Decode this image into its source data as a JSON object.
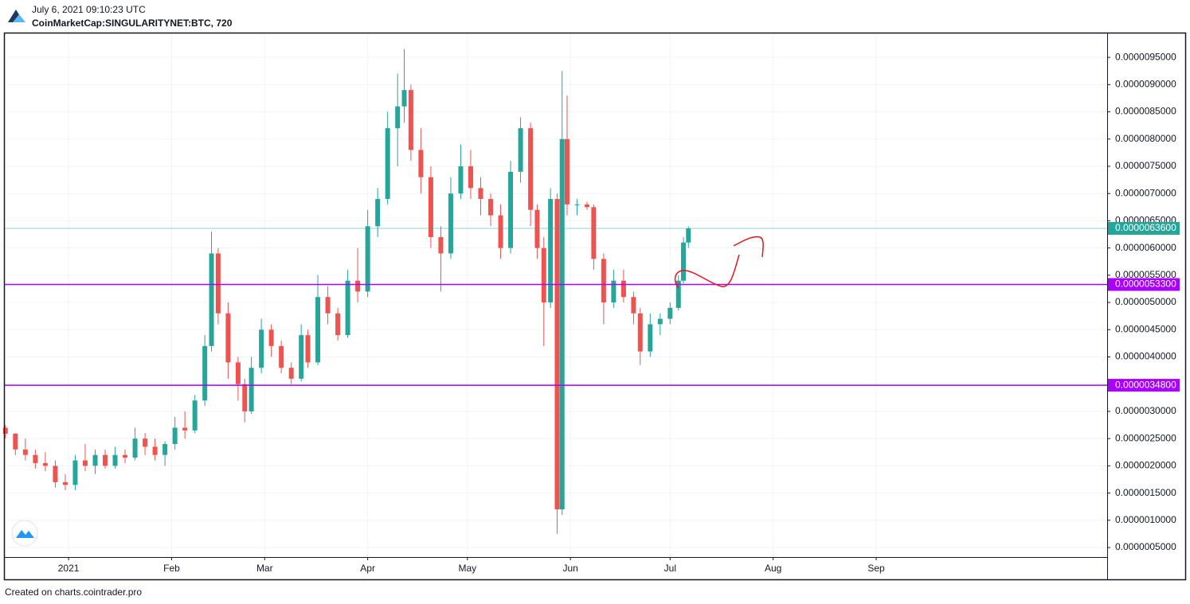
{
  "header": {
    "timestamp": "July 6, 2021 09:10:23 UTC",
    "symbol": "CoinMarketCap:SINGULARITYNET:BTC, 720"
  },
  "chart_data": {
    "type": "candlestick",
    "x": [
      -19,
      -16,
      -13,
      -10,
      -7,
      -4,
      -1,
      2,
      5,
      8,
      11,
      14,
      17,
      20,
      23,
      26,
      29,
      32,
      35,
      38,
      41,
      43,
      45,
      48,
      51,
      53,
      55,
      58,
      61,
      64,
      67,
      70,
      72,
      75,
      78,
      81,
      84,
      87,
      90,
      93,
      96,
      99,
      101,
      103,
      106,
      109,
      112,
      115,
      118,
      121,
      124,
      127,
      130,
      133,
      136,
      139,
      141,
      143,
      145,
      147,
      148.5,
      150,
      153,
      156,
      158,
      161,
      164,
      167,
      170,
      172,
      175,
      178,
      181,
      183.5,
      185,
      186.5
    ],
    "open": [
      2.7e-06,
      2.59e-06,
      2.3e-06,
      2.2e-06,
      2.05e-06,
      2e-06,
      1.7e-06,
      1.65e-06,
      2.1e-06,
      2e-06,
      2.2e-06,
      2e-06,
      2.2e-06,
      2.15e-06,
      2.5e-06,
      2.35e-06,
      2.2e-06,
      2.4e-06,
      2.7e-06,
      2.65e-06,
      3.2e-06,
      4.2e-06,
      5.9e-06,
      4.8e-06,
      3.9e-06,
      3.5e-06,
      3e-06,
      3.8e-06,
      4.5e-06,
      4.2e-06,
      3.8e-06,
      3.6e-06,
      4.4e-06,
      3.9e-06,
      5.1e-06,
      4.8e-06,
      4.4e-06,
      5.4e-06,
      5.2e-06,
      6.4e-06,
      6.9e-06,
      8.2e-06,
      8.6e-06,
      8.9e-06,
      7.8e-06,
      7.3e-06,
      6.2e-06,
      5.9e-06,
      7e-06,
      7.5e-06,
      7.1e-06,
      6.9e-06,
      6.6e-06,
      6e-06,
      7.4e-06,
      8.2e-06,
      6.7e-06,
      6e-06,
      5e-06,
      6.9e-06,
      1.2e-06,
      8e-06,
      6.8e-06,
      6.8e-06,
      6.75e-06,
      5.8e-06,
      5e-06,
      5.4e-06,
      5.1e-06,
      4.8e-06,
      4.1e-06,
      4.6e-06,
      4.7e-06,
      4.9e-06,
      5.4e-06,
      6.1e-06
    ],
    "high": [
      2.75e-06,
      2.6e-06,
      2.5e-06,
      2.3e-06,
      2.25e-06,
      2.1e-06,
      1.85e-06,
      2.2e-06,
      2.4e-06,
      2.3e-06,
      2.3e-06,
      2.35e-06,
      2.3e-06,
      2.7e-06,
      2.6e-06,
      2.5e-06,
      2.45e-06,
      2.9e-06,
      3e-06,
      3.3e-06,
      4.4e-06,
      6.3e-06,
      6e-06,
      5e-06,
      4e-06,
      3.6e-06,
      4e-06,
      4.7e-06,
      4.6e-06,
      4.3e-06,
      3.9e-06,
      4.6e-06,
      4.5e-06,
      5.5e-06,
      5.3e-06,
      4.9e-06,
      5.6e-06,
      6e-06,
      6.7e-06,
      7.1e-06,
      8.5e-06,
      9.2e-06,
      9.65e-06,
      9e-06,
      8.2e-06,
      7.5e-06,
      6.4e-06,
      7.3e-06,
      7.9e-06,
      7.8e-06,
      7.3e-06,
      7e-06,
      6.8e-06,
      7.6e-06,
      8.4e-06,
      8.3e-06,
      6.8e-06,
      6.2e-06,
      7.1e-06,
      7e-06,
      9.25e-06,
      8.8e-06,
      6.9e-06,
      6.85e-06,
      6.8e-06,
      5.9e-06,
      5.6e-06,
      5.6e-06,
      5.2e-06,
      4.9e-06,
      4.8e-06,
      4.8e-06,
      5e-06,
      5.5e-06,
      6.2e-06,
      6.4e-06
    ],
    "low": [
      2.5e-06,
      2.2e-06,
      2.1e-06,
      1.95e-06,
      1.9e-06,
      1.6e-06,
      1.55e-06,
      1.55e-06,
      1.9e-06,
      1.85e-06,
      1.95e-06,
      1.95e-06,
      2.05e-06,
      2.1e-06,
      2.2e-06,
      2.1e-06,
      2e-06,
      2.3e-06,
      2.5e-06,
      2.6e-06,
      3.1e-06,
      4.1e-06,
      4.6e-06,
      3.6e-06,
      3.2e-06,
      2.8e-06,
      2.95e-06,
      3.7e-06,
      4e-06,
      3.7e-06,
      3.5e-06,
      3.55e-06,
      3.8e-06,
      3.85e-06,
      4.6e-06,
      4.3e-06,
      4.35e-06,
      5e-06,
      5.1e-06,
      6.2e-06,
      6.8e-06,
      7.5e-06,
      8.3e-06,
      7.6e-06,
      7e-06,
      6e-06,
      5.2e-06,
      5.8e-06,
      6.9e-06,
      6.9e-06,
      6.6e-06,
      6.4e-06,
      5.8e-06,
      5.9e-06,
      7.2e-06,
      6.4e-06,
      5.8e-06,
      4.2e-06,
      4.9e-06,
      7.5e-07,
      1.1e-06,
      6.6e-06,
      6.6e-06,
      6.7e-06,
      5.6e-06,
      4.6e-06,
      4.9e-06,
      5e-06,
      4.6e-06,
      3.85e-06,
      4e-06,
      4.4e-06,
      4.6e-06,
      4.85e-06,
      5.35e-06,
      6e-06
    ],
    "close": [
      2.59e-06,
      2.3e-06,
      2.2e-06,
      2.05e-06,
      2e-06,
      1.7e-06,
      1.65e-06,
      2.1e-06,
      2e-06,
      2.2e-06,
      2e-06,
      2.2e-06,
      2.15e-06,
      2.5e-06,
      2.35e-06,
      2.2e-06,
      2.4e-06,
      2.7e-06,
      2.65e-06,
      3.2e-06,
      4.2e-06,
      5.9e-06,
      4.8e-06,
      3.9e-06,
      3.5e-06,
      3e-06,
      3.8e-06,
      4.5e-06,
      4.2e-06,
      3.8e-06,
      3.6e-06,
      4.4e-06,
      3.9e-06,
      5.1e-06,
      4.8e-06,
      4.4e-06,
      5.4e-06,
      5.2e-06,
      6.4e-06,
      6.9e-06,
      8.2e-06,
      8.6e-06,
      8.9e-06,
      7.8e-06,
      7.3e-06,
      6.2e-06,
      5.9e-06,
      7e-06,
      7.5e-06,
      7.1e-06,
      6.9e-06,
      6.6e-06,
      6e-06,
      7.4e-06,
      8.2e-06,
      6.7e-06,
      6e-06,
      5e-06,
      6.9e-06,
      1.2e-06,
      8e-06,
      6.8e-06,
      6.8e-06,
      6.75e-06,
      5.8e-06,
      5e-06,
      5.4e-06,
      5.1e-06,
      4.8e-06,
      4.1e-06,
      4.6e-06,
      4.7e-06,
      4.9e-06,
      5.4e-06,
      6.1e-06,
      6.36e-06
    ],
    "up_color": "#26a69a",
    "down_color": "#ef5350",
    "xlim": [
      -19.2,
      312.5
    ],
    "xticks": [
      {
        "value": 0,
        "label": "2021"
      },
      {
        "value": 31,
        "label": "Feb"
      },
      {
        "value": 59,
        "label": "Mar"
      },
      {
        "value": 90,
        "label": "Apr"
      },
      {
        "value": 120,
        "label": "May"
      },
      {
        "value": 151,
        "label": "Jun"
      },
      {
        "value": 181,
        "label": "Jul"
      },
      {
        "value": 212,
        "label": "Aug"
      },
      {
        "value": 243,
        "label": "Sep"
      }
    ],
    "ylim": [
      3.25e-07,
      9.94e-06
    ],
    "yticks": [
      {
        "value": 5e-07,
        "label": "0.0000005000"
      },
      {
        "value": 1e-06,
        "label": "0.0000010000"
      },
      {
        "value": 1.5e-06,
        "label": "0.0000015000"
      },
      {
        "value": 2e-06,
        "label": "0.0000020000"
      },
      {
        "value": 2.5e-06,
        "label": "0.0000025000"
      },
      {
        "value": 3e-06,
        "label": "0.0000030000"
      },
      {
        "value": 3.5e-06,
        "label": "0.0000035000"
      },
      {
        "value": 4e-06,
        "label": "0.0000040000"
      },
      {
        "value": 4.5e-06,
        "label": "0.0000045000"
      },
      {
        "value": 5e-06,
        "label": "0.0000050000"
      },
      {
        "value": 5.5e-06,
        "label": "0.0000055000"
      },
      {
        "value": 6e-06,
        "label": "0.0000060000"
      },
      {
        "value": 6.5e-06,
        "label": "0.0000065000"
      },
      {
        "value": 7e-06,
        "label": "0.0000070000"
      },
      {
        "value": 7.5e-06,
        "label": "0.0000075000"
      },
      {
        "value": 8e-06,
        "label": "0.0000080000"
      },
      {
        "value": 8.5e-06,
        "label": "0.0000085000"
      },
      {
        "value": 9e-06,
        "label": "0.0000090000"
      },
      {
        "value": 9.5e-06,
        "label": "0.0000095000"
      }
    ],
    "grid": true,
    "hlines": [
      {
        "value": 6.36e-06,
        "label": "0.0000063600",
        "color": "#26a69a"
      },
      {
        "value": 5.33e-06,
        "label": "0.0000053300",
        "color": "#aa00ff"
      },
      {
        "value": 3.48e-06,
        "label": "0.0000034800",
        "color": "#aa00ff"
      }
    ]
  },
  "footer": "Created on charts.cointrader.pro"
}
